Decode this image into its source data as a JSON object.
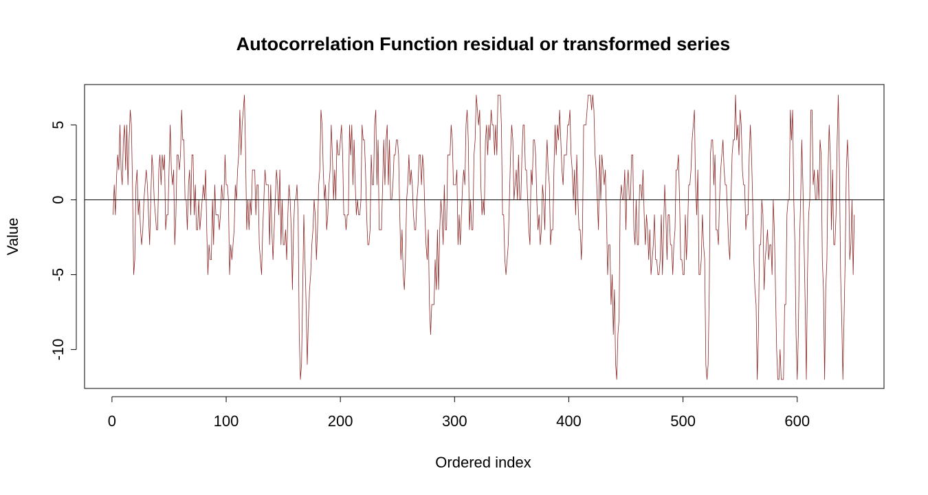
{
  "chart_data": {
    "type": "line",
    "title": "Autocorrelation Function residual or transformed series",
    "xlabel": "Ordered index",
    "ylabel": "Value",
    "xlim": [
      -24,
      676
    ],
    "ylim": [
      -12.6,
      7.7
    ],
    "x_ticks": [
      0,
      100,
      200,
      300,
      400,
      500,
      600
    ],
    "y_ticks": [
      -10,
      -5,
      0,
      5
    ],
    "reference_line_y": 0,
    "grid": false,
    "legend": "none",
    "series": [
      {
        "color": "#8B2323",
        "x_start": 1,
        "x_end": 650,
        "anchors": [
          [
            1,
            -1
          ],
          [
            4,
            1.5
          ],
          [
            6,
            2
          ],
          [
            9,
            1
          ],
          [
            11,
            5
          ],
          [
            14,
            1
          ],
          [
            17,
            5
          ],
          [
            19,
            -5
          ],
          [
            22,
            2
          ],
          [
            25,
            -2
          ],
          [
            28,
            0
          ],
          [
            32,
            -1
          ],
          [
            36,
            2
          ],
          [
            40,
            -2
          ],
          [
            44,
            3
          ],
          [
            48,
            -1
          ],
          [
            51,
            5
          ],
          [
            55,
            -3
          ],
          [
            58,
            3
          ],
          [
            62,
            4
          ],
          [
            66,
            -2
          ],
          [
            70,
            3
          ],
          [
            75,
            -2
          ],
          [
            80,
            1
          ],
          [
            85,
            -3
          ],
          [
            90,
            1
          ],
          [
            95,
            -1
          ],
          [
            100,
            1
          ],
          [
            105,
            -4
          ],
          [
            110,
            2
          ],
          [
            115,
            6
          ],
          [
            120,
            -2
          ],
          [
            125,
            2
          ],
          [
            130,
            -4
          ],
          [
            135,
            1
          ],
          [
            140,
            -2
          ],
          [
            145,
            1
          ],
          [
            150,
            -3
          ],
          [
            155,
            1
          ],
          [
            158,
            -6
          ],
          [
            162,
            1
          ],
          [
            165,
            -12
          ],
          [
            168,
            -1
          ],
          [
            171,
            -11
          ],
          [
            175,
            -3
          ],
          [
            180,
            -2
          ],
          [
            183,
            6
          ],
          [
            188,
            -2
          ],
          [
            192,
            5
          ],
          [
            196,
            0
          ],
          [
            200,
            4
          ],
          [
            205,
            -2
          ],
          [
            210,
            5
          ],
          [
            215,
            0
          ],
          [
            220,
            4
          ],
          [
            225,
            -3
          ],
          [
            230,
            5
          ],
          [
            235,
            -2
          ],
          [
            240,
            4
          ],
          [
            245,
            0
          ],
          [
            250,
            4
          ],
          [
            255,
            -5
          ],
          [
            260,
            3
          ],
          [
            265,
            -2
          ],
          [
            270,
            3
          ],
          [
            275,
            -3
          ],
          [
            280,
            -7
          ],
          [
            284,
            -6
          ],
          [
            288,
            0
          ],
          [
            292,
            -2
          ],
          [
            296,
            3
          ],
          [
            300,
            1
          ],
          [
            305,
            -3
          ],
          [
            310,
            5
          ],
          [
            315,
            -2
          ],
          [
            320,
            6
          ],
          [
            325,
            0
          ],
          [
            330,
            5
          ],
          [
            335,
            3
          ],
          [
            339,
            7
          ],
          [
            343,
            -1
          ],
          [
            346,
            -4
          ],
          [
            350,
            5
          ],
          [
            355,
            0
          ],
          [
            360,
            5
          ],
          [
            365,
            -2
          ],
          [
            370,
            4
          ],
          [
            375,
            -3
          ],
          [
            380,
            2
          ],
          [
            385,
            -2
          ],
          [
            390,
            5
          ],
          [
            395,
            1
          ],
          [
            400,
            5
          ],
          [
            405,
            2
          ],
          [
            410,
            -2
          ],
          [
            415,
            5
          ],
          [
            420,
            6
          ],
          [
            425,
            0
          ],
          [
            430,
            2
          ],
          [
            435,
            -3
          ],
          [
            438,
            -5
          ],
          [
            442,
            -12
          ],
          [
            446,
            1
          ],
          [
            450,
            -2
          ],
          [
            455,
            3
          ],
          [
            460,
            -3
          ],
          [
            465,
            2
          ],
          [
            470,
            -4
          ],
          [
            475,
            -1
          ],
          [
            480,
            -4
          ],
          [
            485,
            -1
          ],
          [
            490,
            -3
          ],
          [
            495,
            2
          ],
          [
            500,
            -5
          ],
          [
            505,
            1
          ],
          [
            510,
            6
          ],
          [
            515,
            -5
          ],
          [
            518,
            -3
          ],
          [
            521,
            -12
          ],
          [
            525,
            4
          ],
          [
            530,
            -2
          ],
          [
            535,
            4
          ],
          [
            540,
            -3
          ],
          [
            545,
            4
          ],
          [
            550,
            6
          ],
          [
            555,
            -2
          ],
          [
            560,
            3
          ],
          [
            565,
            -12
          ],
          [
            568,
            -3
          ],
          [
            572,
            -4
          ],
          [
            576,
            -3
          ],
          [
            580,
            -2
          ],
          [
            584,
            -12
          ],
          [
            588,
            -12
          ],
          [
            592,
            0
          ],
          [
            596,
            6
          ],
          [
            600,
            -12
          ],
          [
            604,
            4
          ],
          [
            608,
            -12
          ],
          [
            612,
            6
          ],
          [
            616,
            0
          ],
          [
            620,
            4
          ],
          [
            624,
            -12
          ],
          [
            628,
            5
          ],
          [
            632,
            -3
          ],
          [
            636,
            7
          ],
          [
            640,
            -12
          ],
          [
            644,
            4
          ],
          [
            647,
            -3
          ],
          [
            650,
            -1
          ]
        ]
      }
    ]
  }
}
